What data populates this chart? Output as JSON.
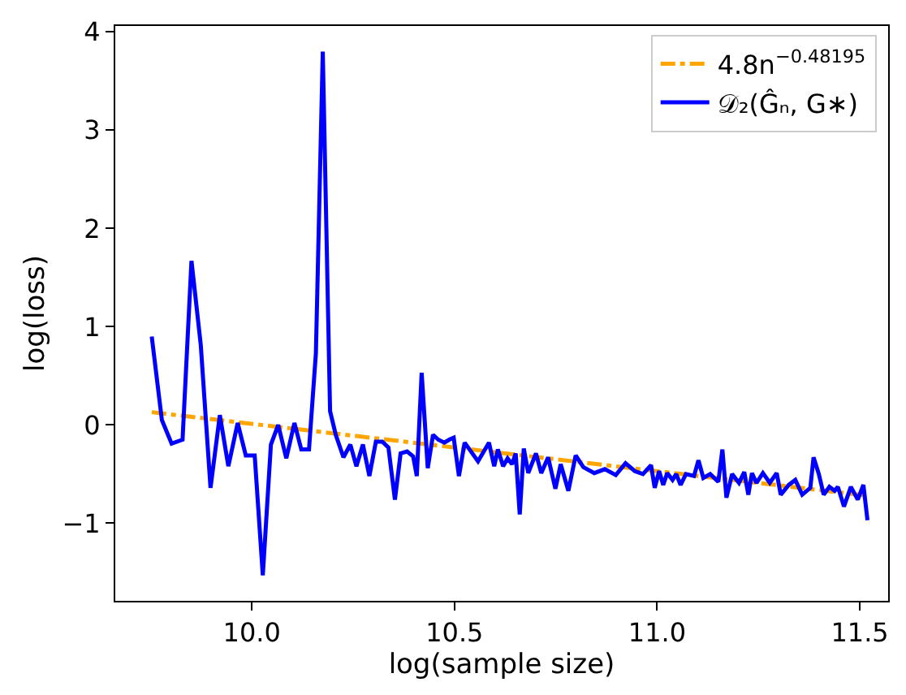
{
  "chart_data": {
    "type": "line",
    "xlabel": "log(sample size)",
    "ylabel": "log(loss)",
    "xlim": [
      9.663,
      11.57
    ],
    "xticks": [
      {
        "value": 10.0,
        "label": "10.0"
      },
      10.5,
      {
        "value": 11.0,
        "label": "11.0"
      },
      11.5
    ],
    "ylim": [
      -1.79,
      4.06
    ],
    "yticks": [
      {
        "value": -1,
        "label": "−1"
      },
      0,
      1,
      2,
      3,
      4
    ],
    "grid": false,
    "legend": "top right",
    "marker": "none",
    "series": [
      {
        "name": "4.8n$^{−0.48195}$",
        "color": "#ffa500",
        "line_style": "dashdot",
        "x": [
          9.753,
          11.519
        ],
        "values": [
          0.13,
          -0.72
        ]
      },
      {
        "name": "𝒟₂(Ĝₙ, G∗)",
        "color": "#0000ff",
        "line_style": "solid",
        "x": [
          9.753,
          9.778,
          9.802,
          9.829,
          9.851,
          9.874,
          9.898,
          9.921,
          9.942,
          9.965,
          9.985,
          10.007,
          10.027,
          10.047,
          10.065,
          10.085,
          10.105,
          10.122,
          10.141,
          10.158,
          10.175,
          10.193,
          10.207,
          10.226,
          10.243,
          10.258,
          10.274,
          10.29,
          10.306,
          10.322,
          10.337,
          10.353,
          10.367,
          10.383,
          10.398,
          10.407,
          10.419,
          10.434,
          10.447,
          10.46,
          10.475,
          10.487,
          10.498,
          10.511,
          10.525,
          10.558,
          10.585,
          10.598,
          10.607,
          10.62,
          10.631,
          10.642,
          10.651,
          10.661,
          10.671,
          10.682,
          10.701,
          10.714,
          10.731,
          10.749,
          10.762,
          10.781,
          10.799,
          10.818,
          10.845,
          10.871,
          10.898,
          10.922,
          10.945,
          10.965,
          10.985,
          10.994,
          11.005,
          11.015,
          11.025,
          11.038,
          11.047,
          11.058,
          11.071,
          11.091,
          11.102,
          11.114,
          11.131,
          11.151,
          11.161,
          11.171,
          11.185,
          11.202,
          11.215,
          11.225,
          11.234,
          11.245,
          11.261,
          11.278,
          11.295,
          11.305,
          11.325,
          11.341,
          11.358,
          11.378,
          11.386,
          11.399,
          11.411,
          11.425,
          11.438,
          11.446,
          11.461,
          11.478,
          11.495,
          11.509,
          11.519
        ],
        "values": [
          0.9,
          0.05,
          -0.19,
          -0.15,
          1.67,
          0.81,
          -0.64,
          0.1,
          -0.42,
          0.02,
          -0.31,
          -0.31,
          -1.53,
          -0.2,
          0.0,
          -0.34,
          0.02,
          -0.25,
          -0.25,
          0.73,
          3.8,
          0.14,
          -0.1,
          -0.33,
          -0.2,
          -0.42,
          -0.2,
          -0.52,
          -0.17,
          -0.17,
          -0.23,
          -0.76,
          -0.29,
          -0.27,
          -0.32,
          -0.52,
          0.53,
          -0.44,
          -0.1,
          -0.15,
          -0.18,
          -0.15,
          -0.13,
          -0.52,
          -0.18,
          -0.37,
          -0.18,
          -0.42,
          -0.25,
          -0.42,
          -0.34,
          -0.4,
          -0.29,
          -0.91,
          -0.24,
          -0.49,
          -0.29,
          -0.49,
          -0.33,
          -0.65,
          -0.4,
          -0.67,
          -0.31,
          -0.43,
          -0.49,
          -0.45,
          -0.51,
          -0.39,
          -0.47,
          -0.5,
          -0.41,
          -0.64,
          -0.47,
          -0.61,
          -0.49,
          -0.56,
          -0.5,
          -0.61,
          -0.5,
          -0.52,
          -0.36,
          -0.54,
          -0.5,
          -0.58,
          -0.25,
          -0.74,
          -0.5,
          -0.59,
          -0.48,
          -0.71,
          -0.49,
          -0.59,
          -0.49,
          -0.59,
          -0.49,
          -0.71,
          -0.61,
          -0.56,
          -0.71,
          -0.64,
          -0.33,
          -0.5,
          -0.71,
          -0.63,
          -0.67,
          -0.63,
          -0.83,
          -0.63,
          -0.76,
          -0.61,
          -0.97
        ]
      }
    ]
  }
}
